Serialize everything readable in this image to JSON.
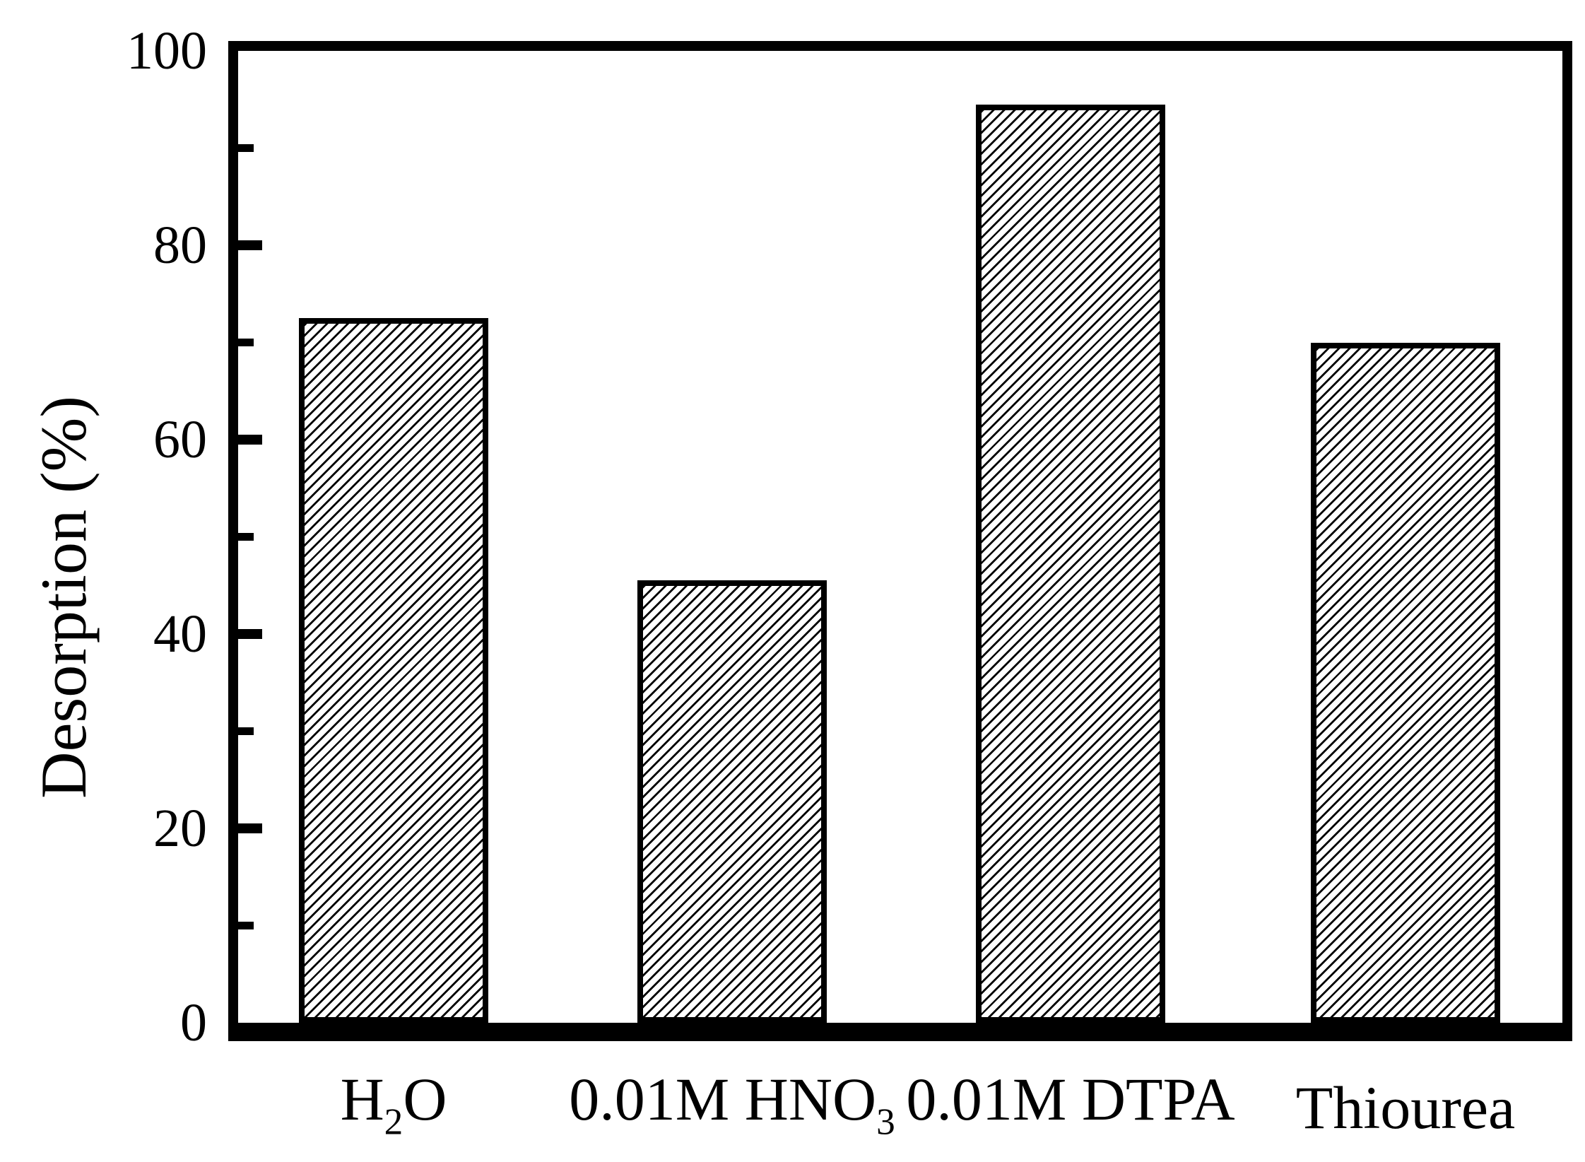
{
  "figure": {
    "background": "#ffffff",
    "ink_color": "#000000"
  },
  "chart_data": {
    "type": "bar",
    "title": "",
    "xlabel": "",
    "ylabel": "Desorption (%)",
    "ylim": [
      0,
      100
    ],
    "yticks_major": [
      0,
      20,
      40,
      60,
      80,
      100
    ],
    "yticks_minor": [
      10,
      30,
      50,
      70,
      90
    ],
    "grid": false,
    "legend": false,
    "categories": [
      "H₂O",
      "0.01M HNO₃",
      "0.01M DTPA",
      "Thiourea"
    ],
    "categories_rich": [
      {
        "parts": [
          {
            "text": "H"
          },
          {
            "text": "2",
            "sub": true
          },
          {
            "text": "O"
          }
        ]
      },
      {
        "parts": [
          {
            "text": "0.01M HNO"
          },
          {
            "text": "3",
            "sub": true
          }
        ]
      },
      {
        "parts": [
          {
            "text": "0.01M DTPA"
          }
        ]
      },
      {
        "parts": [
          {
            "text": "Thiourea"
          }
        ]
      }
    ],
    "values": [
      72.5,
      45.5,
      94.5,
      70
    ],
    "bar_style": {
      "fill": "#ffffff",
      "hatch": "diagonal-forward",
      "edge_color": "#000000"
    }
  }
}
